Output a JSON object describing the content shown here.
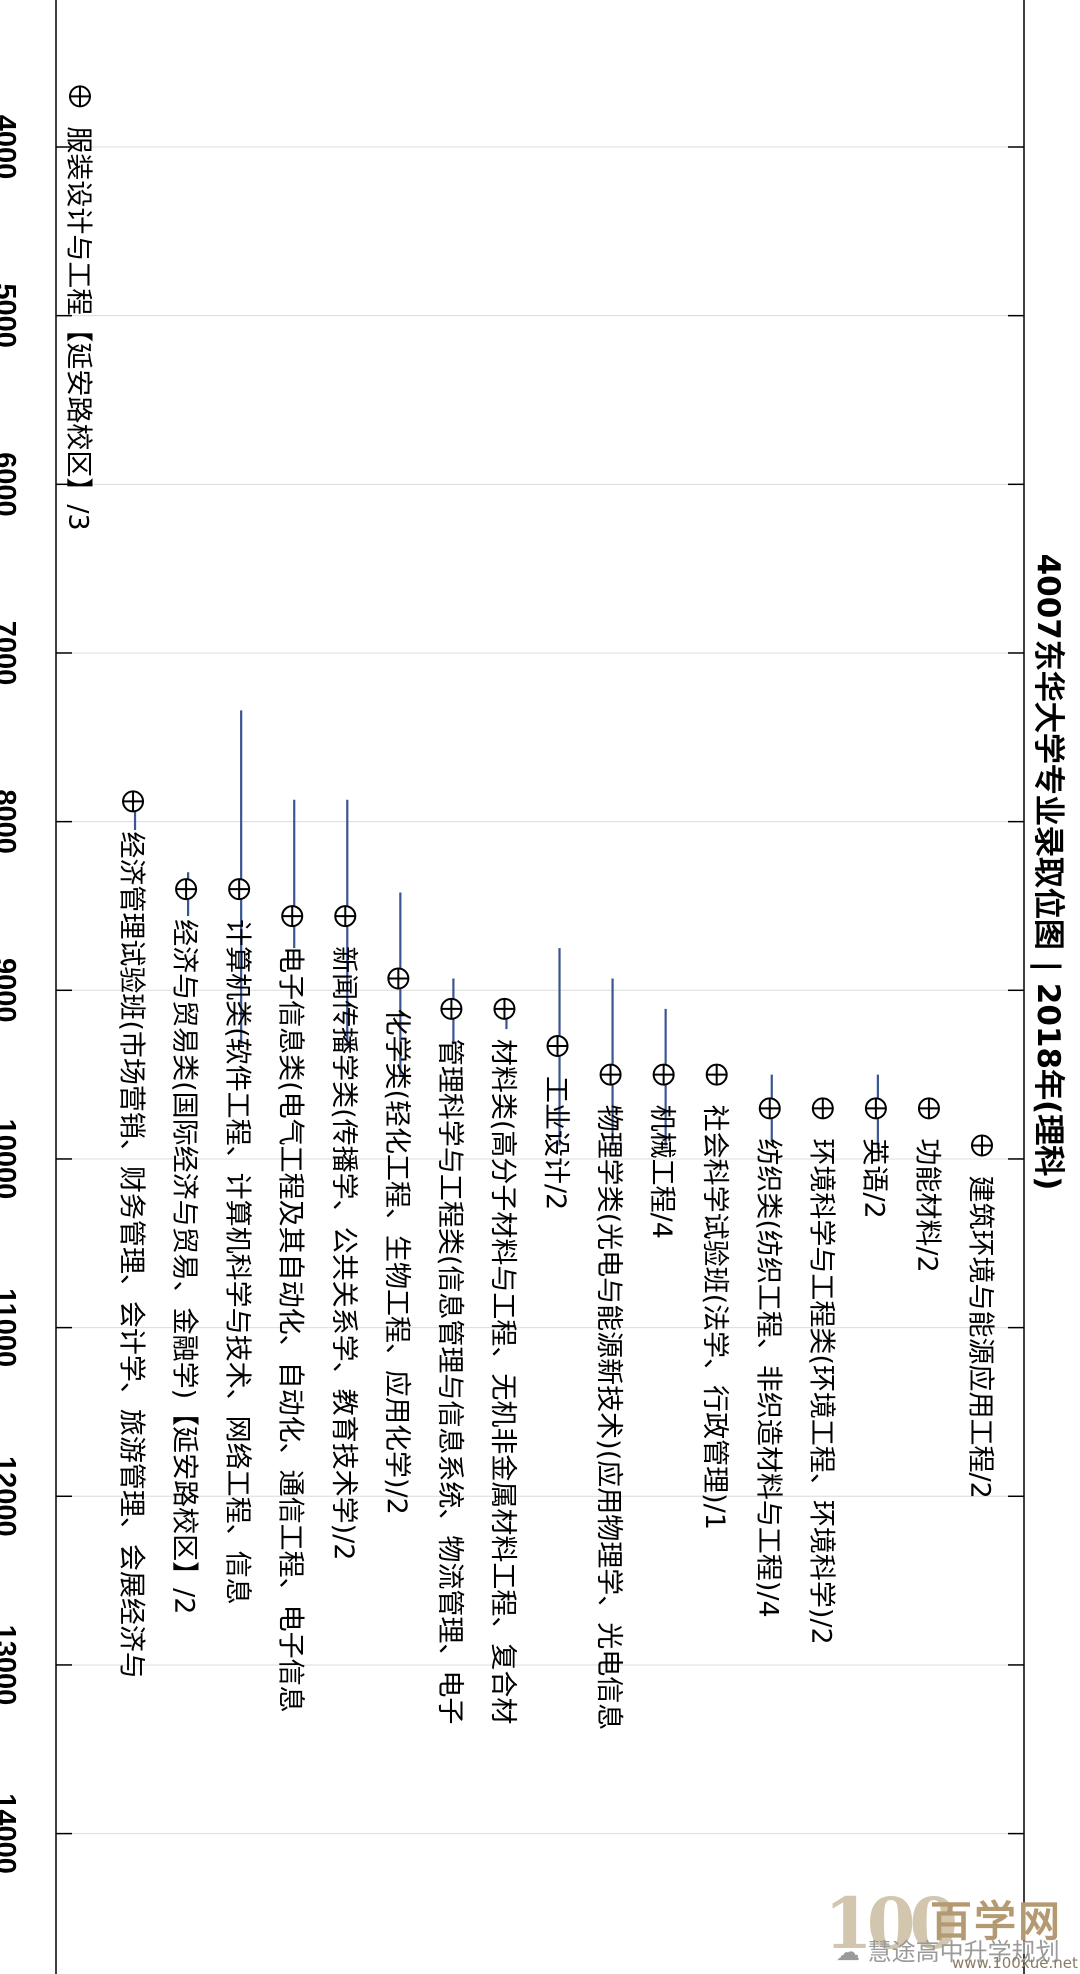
{
  "chart_data": {
    "type": "scatter",
    "title": "4007东华大学专业录取位图 | 2018年(理科)",
    "y_axis_ticks": [
      "4000",
      "5000",
      "6000",
      "7000",
      "8000",
      "9000",
      "10000",
      "11000",
      "12000",
      "13000",
      "14000"
    ],
    "ylim": [
      3650,
      14800
    ],
    "grid": true,
    "marker_color": "#000000",
    "range_color": "#3a5592",
    "majors": [
      {
        "label": "建筑环境与能源应用工程/2",
        "value": 9920,
        "range": null
      },
      {
        "label": "功能材料/2",
        "value": 9700,
        "range": [
          9650,
          9760
        ]
      },
      {
        "label": "英语/2",
        "value": 9700,
        "range": [
          9500,
          9940
        ]
      },
      {
        "label": "环境科学与工程类(环境工程、环境科学)/2",
        "value": 9700,
        "range": null
      },
      {
        "label": "纺织类(纺织工程、非织造材料与工程)/4",
        "value": 9700,
        "range": [
          9500,
          9900
        ]
      },
      {
        "label": "社会科学试验班(法学、行政管理)/1",
        "value": 9500,
        "range": null
      },
      {
        "label": "机械工程/4",
        "value": 9500,
        "range": [
          9110,
          9920
        ]
      },
      {
        "label": "物理学类(光电与能源新技术)(应用物理学、光电信息",
        "value": 9500,
        "range": [
          8930,
          9920
        ]
      },
      {
        "label": "工业设计/2",
        "value": 9330,
        "range": [
          8750,
          9920
        ]
      },
      {
        "label": "材料类(高分子材料与工程、无机非金属材料工程、复合材",
        "value": 9110,
        "range": [
          9050,
          9230
        ]
      },
      {
        "label": "管理科学与工程类(信息管理与信息系统、物流管理、电子",
        "value": 9110,
        "range": [
          8930,
          9320
        ]
      },
      {
        "label": "化学类(轻化工程、生物工程、应用化学)/2",
        "value": 8930,
        "range": [
          8420,
          9500
        ]
      },
      {
        "label": "新闻传播学类(传播学、公共关系学、教育技术学)/2",
        "value": 8560,
        "range": [
          7870,
          9330
        ]
      },
      {
        "label": "电子信息类(电气工程及其自动化、自动化、通信工程、电子信息",
        "value": 8560,
        "range": [
          7870,
          8750
        ]
      },
      {
        "label": "计算机类(软件工程、计算机科学与技术、网络工程、信息",
        "value": 8400,
        "range": [
          7340,
          9320
        ]
      },
      {
        "label": "经济与贸易类(国际经济与贸易、金融学)【延安路校区】/2",
        "value": 8400,
        "range": [
          8300,
          8560
        ]
      },
      {
        "label": "经济管理试验班(市场营销、财务管理、会计学、旅游管理、会展经济与",
        "value": 7880,
        "range": [
          7820,
          8050
        ]
      },
      {
        "label": "服装设计与工程【延安路校区】/3",
        "value": 3700,
        "range": null
      }
    ]
  },
  "watermark": {
    "logo": "100",
    "brand": "百学网",
    "account": "慧途高中升学规划",
    "url": "www.100xue.net"
  }
}
